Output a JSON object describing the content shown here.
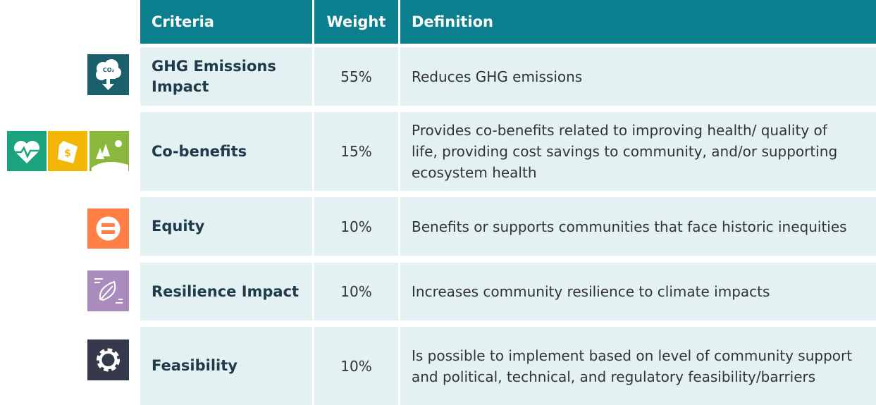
{
  "header": [
    "Criteria",
    "Weight",
    "Definition"
  ],
  "rows": [
    {
      "criteria": "GHG Emissions Impact",
      "weight": "55%",
      "definition": "Reduces GHG emissions",
      "icon_labels": [
        "CO₂"
      ]
    },
    {
      "criteria": "Co-benefits",
      "weight": "15%",
      "definition": "Provides co-benefits related to improving health/ quality of life, providing cost savings to community, and/or supporting ecosystem health",
      "icon_labels": [
        "$"
      ]
    },
    {
      "criteria": "Equity",
      "weight": "10%",
      "definition": "Benefits or supports communities that face historic inequities"
    },
    {
      "criteria": "Resilience Impact",
      "weight": "10%",
      "definition": "Increases community resilience to climate impacts"
    },
    {
      "criteria": "Feasibility",
      "weight": "10%",
      "definition": "Is possible to implement based on level of community support and political, technical, and regulatory feasibility/barriers"
    }
  ]
}
